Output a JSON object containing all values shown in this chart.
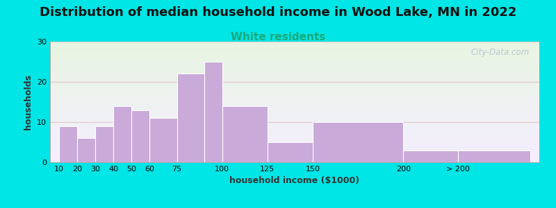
{
  "title": "Distribution of median household income in Wood Lake, MN in 2022",
  "subtitle": "White residents",
  "xlabel": "household income ($1000)",
  "ylabel": "households",
  "bin_edges": [
    10,
    20,
    30,
    40,
    50,
    60,
    75,
    90,
    100,
    125,
    150,
    200,
    230,
    270
  ],
  "bar_heights": [
    9,
    6,
    9,
    14,
    13,
    11,
    22,
    25,
    14,
    5,
    10,
    3,
    3
  ],
  "xtick_positions": [
    10,
    20,
    30,
    40,
    50,
    60,
    75,
    100,
    125,
    150,
    200,
    230
  ],
  "xtick_labels": [
    "10",
    "20",
    "30",
    "40",
    "50",
    "60",
    "75",
    "100",
    "125",
    "150",
    "200",
    "> 200"
  ],
  "bar_color": "#c9aad8",
  "bar_edge_color": "#ffffff",
  "ylim": [
    0,
    30
  ],
  "yticks": [
    0,
    10,
    20,
    30
  ],
  "xlim_min": 5,
  "xlim_max": 275,
  "background_color": "#00e5e5",
  "plot_bg_top_color": "#e8f5e2",
  "plot_bg_bottom_color": "#f5eeff",
  "title_fontsize": 13,
  "subtitle_fontsize": 11,
  "subtitle_color": "#1aaa7a",
  "axis_label_fontsize": 9,
  "tick_fontsize": 8,
  "watermark_text": "City-Data.com",
  "grid_color": "#e0c8c8"
}
